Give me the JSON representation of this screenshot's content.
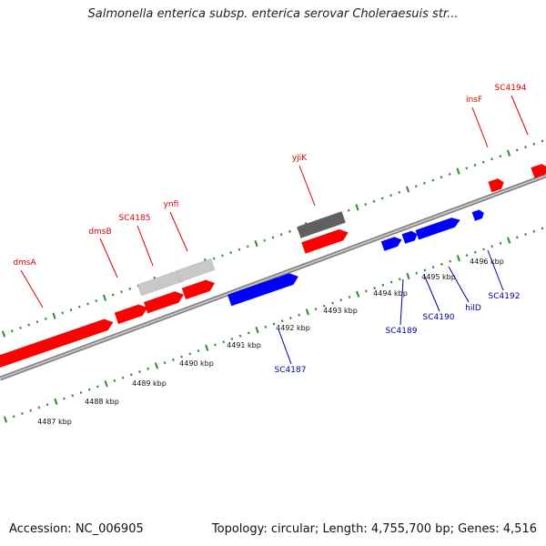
{
  "title": "Salmonella enterica subsp. enterica serovar Choleraesuis str...",
  "footer": {
    "accession": "Accession: NC_006905",
    "topology": "Topology: circular; Length: 4,755,700 bp; Genes: 4,516"
  },
  "colors": {
    "forward": "#ff0000",
    "reverse": "#0000ff",
    "forward_label": "#dd0000",
    "reverse_label": "#000099",
    "backbone": "#888888",
    "pseudo_light": "#c8c8c8",
    "pseudo_dark": "#606060",
    "tick": "#2e8b2e"
  },
  "map": {
    "kbp_labels": [
      "4487 kbp",
      "4488 kbp",
      "4489 kbp",
      "4490 kbp",
      "4491 kbp",
      "4492 kbp",
      "4493 kbp",
      "4494 kbp",
      "4495 kbp",
      "4496 kbp"
    ],
    "forward_genes": [
      {
        "label": "dmsA",
        "type": "forward"
      },
      {
        "label": "dmsB",
        "type": "forward"
      },
      {
        "label": "SC4185",
        "type": "forward"
      },
      {
        "label": "ynfI",
        "type": "forward"
      },
      {
        "label": "yjiK",
        "type": "forward"
      },
      {
        "label": "insF",
        "type": "forward"
      },
      {
        "label": "SC4194",
        "type": "forward"
      }
    ],
    "reverse_genes": [
      {
        "label": "SC4187",
        "type": "reverse"
      },
      {
        "label": "SC4189",
        "type": "reverse"
      },
      {
        "label": "SC4190",
        "type": "reverse"
      },
      {
        "label": "hilD",
        "type": "reverse"
      },
      {
        "label": "SC4192",
        "type": "reverse"
      }
    ]
  }
}
